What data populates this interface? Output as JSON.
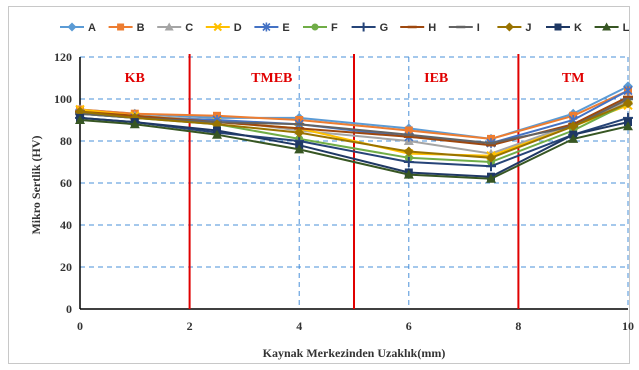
{
  "chart_data": {
    "type": "line",
    "title": "",
    "xlabel": "Kaynak Merkezinden Uzaklık(mm)",
    "ylabel": "Mikro Sertlik (HV)",
    "xlim": [
      0,
      10
    ],
    "ylim": [
      0,
      120
    ],
    "xticks": [
      0,
      2,
      4,
      6,
      8,
      10
    ],
    "yticks": [
      0,
      20,
      40,
      60,
      80,
      100,
      120
    ],
    "grid": true,
    "legend_position": "top",
    "x": [
      0,
      1,
      2.5,
      4,
      6,
      7.5,
      9,
      10
    ],
    "series": [
      {
        "name": "A",
        "color": "#5b9bd5",
        "marker": "diamond",
        "values": [
          95,
          93,
          91,
          91,
          86,
          81,
          93,
          106
        ]
      },
      {
        "name": "B",
        "color": "#ed7d31",
        "marker": "square",
        "values": [
          95,
          93,
          92,
          90,
          85,
          81,
          92,
          104
        ]
      },
      {
        "name": "C",
        "color": "#a5a5a5",
        "marker": "triangle",
        "values": [
          94,
          92,
          90,
          85,
          80,
          74,
          88,
          99
        ]
      },
      {
        "name": "D",
        "color": "#ffc000",
        "marker": "x",
        "values": [
          95,
          92,
          89,
          86,
          74,
          73,
          87,
          97
        ]
      },
      {
        "name": "E",
        "color": "#4472c4",
        "marker": "asterisk",
        "values": [
          93,
          91,
          90,
          88,
          82,
          79,
          90,
          104
        ]
      },
      {
        "name": "F",
        "color": "#70ad47",
        "marker": "circle",
        "values": [
          93,
          91,
          88,
          81,
          72,
          70,
          85,
          98
        ]
      },
      {
        "name": "G",
        "color": "#264478",
        "marker": "plus",
        "values": [
          91,
          89,
          84,
          80,
          70,
          68,
          83,
          91
        ]
      },
      {
        "name": "H",
        "color": "#9e480e",
        "marker": "dash",
        "values": [
          94,
          92,
          89,
          86,
          82,
          78,
          88,
          101
        ]
      },
      {
        "name": "I",
        "color": "#636363",
        "marker": "dash",
        "values": [
          93,
          91,
          89,
          88,
          83,
          79,
          87,
          100
        ]
      },
      {
        "name": "J",
        "color": "#997300",
        "marker": "diamond",
        "values": [
          94,
          91,
          88,
          84,
          75,
          72,
          87,
          98
        ]
      },
      {
        "name": "K",
        "color": "#1f3864",
        "marker": "square",
        "values": [
          91,
          89,
          85,
          78,
          65,
          63,
          83,
          89
        ]
      },
      {
        "name": "L",
        "color": "#375623",
        "marker": "triangle",
        "values": [
          90,
          88,
          83,
          76,
          64,
          62,
          81,
          87
        ]
      }
    ],
    "region_boundaries": [
      2,
      5,
      8
    ],
    "region_line_color": "#e00000",
    "regions": [
      {
        "label": "KB",
        "x": 1
      },
      {
        "label": "TMEB",
        "x": 3.5
      },
      {
        "label": "IEB",
        "x": 6.5
      },
      {
        "label": "TM",
        "x": 9
      }
    ]
  }
}
